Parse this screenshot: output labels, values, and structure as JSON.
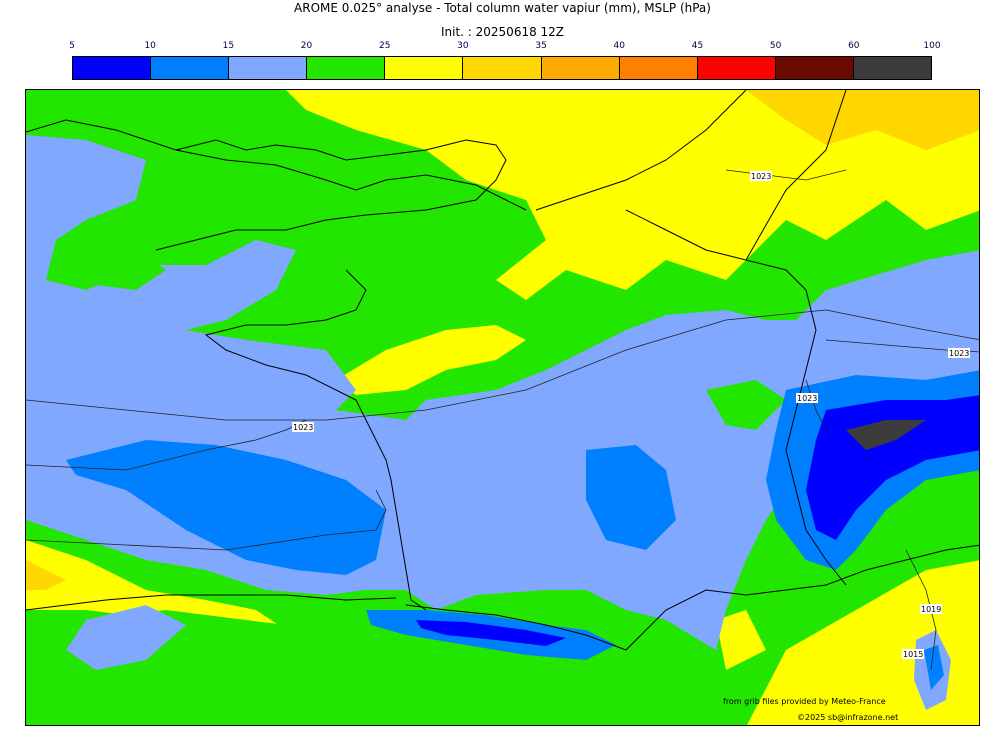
{
  "title": "AROME 0.025° analyse - Total column water vapiur (mm), MSLP (hPa)",
  "init": "Init. : 20250618 12Z",
  "colorbar": {
    "ticks": [
      "5",
      "10",
      "15",
      "20",
      "25",
      "30",
      "35",
      "40",
      "45",
      "50",
      "60",
      "100"
    ],
    "colors": [
      "#0000ff",
      "#0080ff",
      "#80a8ff",
      "#22e600",
      "#ffff00",
      "#ffd700",
      "#ffaa00",
      "#ff8000",
      "#ff0000",
      "#6b0a00",
      "#3c3c3c"
    ]
  },
  "isobars": {
    "labels": [
      "1023",
      "1023",
      "1023",
      "1023",
      "1019",
      "1015"
    ]
  },
  "credits": {
    "source": "from grib files provided by Meteo-France",
    "copyright": "©2025 sb@infrazone.net"
  }
}
